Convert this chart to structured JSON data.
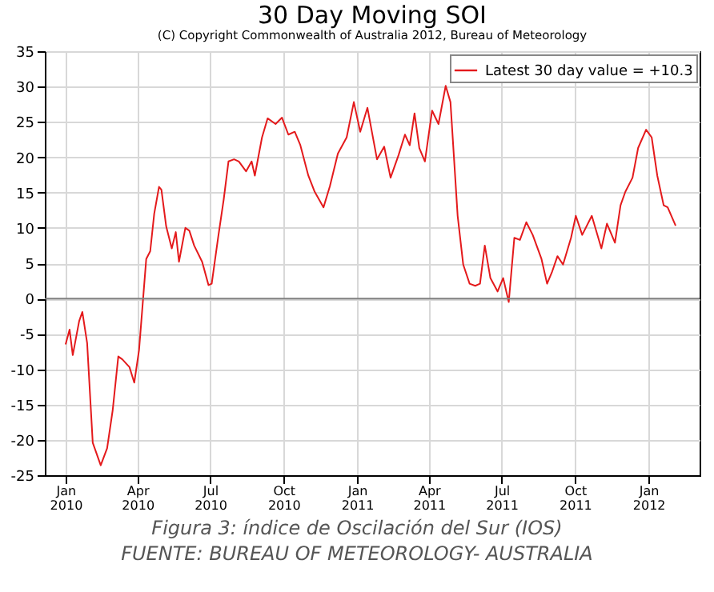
{
  "chart_data": {
    "type": "line",
    "title": "30 Day Moving SOI",
    "subtitle": "(C) Copyright Commonwealth of Australia 2012, Bureau of Meteorology",
    "annotations": [
      "Figura 3: índice de Oscilación del Sur (IOS)",
      "FUENTE: BUREAU OF METEOROLOGY- AUSTRALIA"
    ],
    "xlim": [
      "2009-12-06",
      "2012-03-05"
    ],
    "xticks": [
      {
        "value": "2010-01",
        "label": "Jan 2010"
      },
      {
        "value": "2010-04",
        "label": "Apr 2010"
      },
      {
        "value": "2010-07",
        "label": "Jul 2010"
      },
      {
        "value": "2010-10",
        "label": "Oct 2010"
      },
      {
        "value": "2011-01",
        "label": "Jan 2011"
      },
      {
        "value": "2011-04",
        "label": "Apr 2011"
      },
      {
        "value": "2011-07",
        "label": "Jul 2011"
      },
      {
        "value": "2011-10",
        "label": "Oct 2011"
      },
      {
        "value": "2012-01",
        "label": "Jan 2012"
      }
    ],
    "ylim": [
      -25,
      35
    ],
    "yticks": [
      -25,
      -20,
      -15,
      -10,
      -5,
      0,
      5,
      10,
      15,
      20,
      25,
      30,
      35
    ],
    "grid": true,
    "legend": "top right",
    "ref_lines": [
      {
        "axis": "y",
        "value": 0,
        "color": "#808080"
      }
    ],
    "x": [
      "2010-01-01",
      "2010-01-06",
      "2010-01-10",
      "2010-01-18",
      "2010-01-22",
      "2010-01-28",
      "2010-02-04",
      "2010-02-14",
      "2010-02-22",
      "2010-03-01",
      "2010-03-08",
      "2010-03-13",
      "2010-03-22",
      "2010-03-28",
      "2010-04-03",
      "2010-04-12",
      "2010-04-17",
      "2010-04-22",
      "2010-04-28",
      "2010-05-01",
      "2010-05-07",
      "2010-05-14",
      "2010-05-19",
      "2010-05-23",
      "2010-05-31",
      "2010-06-05",
      "2010-06-11",
      "2010-06-21",
      "2010-06-29",
      "2010-07-03",
      "2010-07-11",
      "2010-07-18",
      "2010-07-24",
      "2010-07-31",
      "2010-08-06",
      "2010-08-15",
      "2010-08-22",
      "2010-08-26",
      "2010-09-04",
      "2010-09-11",
      "2010-09-21",
      "2010-09-29",
      "2010-10-07",
      "2010-10-15",
      "2010-10-22",
      "2010-11-01",
      "2010-11-09",
      "2010-11-20",
      "2010-11-28",
      "2010-12-08",
      "2010-12-19",
      "2010-12-28",
      "2011-01-05",
      "2011-01-14",
      "2011-01-26",
      "2011-02-04",
      "2011-02-12",
      "2011-02-22",
      "2011-03-02",
      "2011-03-08",
      "2011-03-14",
      "2011-03-20",
      "2011-03-27",
      "2011-04-05",
      "2011-04-13",
      "2011-04-22",
      "2011-04-28",
      "2011-05-07",
      "2011-05-14",
      "2011-05-22",
      "2011-05-29",
      "2011-06-04",
      "2011-06-10",
      "2011-06-17",
      "2011-06-26",
      "2011-07-03",
      "2011-07-10",
      "2011-07-17",
      "2011-07-24",
      "2011-08-01",
      "2011-08-09",
      "2011-08-20",
      "2011-08-27",
      "2011-09-02",
      "2011-09-09",
      "2011-09-16",
      "2011-09-26",
      "2011-10-02",
      "2011-10-10",
      "2011-10-22",
      "2011-11-03",
      "2011-11-10",
      "2011-11-20",
      "2011-11-27",
      "2011-12-03",
      "2011-12-12",
      "2011-12-19",
      "2011-12-29",
      "2012-01-05",
      "2012-01-12",
      "2012-01-20",
      "2012-01-25",
      "2012-02-04"
    ],
    "series": [
      {
        "name": "Latest 30 day value = +10.3",
        "color": "#e41a1c",
        "values": [
          -6.5,
          -4.4,
          -8,
          -3.2,
          -1.9,
          -6.3,
          -20.4,
          -23.6,
          -21.2,
          -15.8,
          -8.2,
          -8.6,
          -9.7,
          -11.9,
          -7.3,
          5.6,
          6.7,
          12,
          15.8,
          15.4,
          10.2,
          7.1,
          9.4,
          5.2,
          10,
          9.6,
          7.5,
          5.2,
          1.9,
          2.1,
          8.6,
          14,
          19.4,
          19.7,
          19.4,
          18,
          19.4,
          17.4,
          22.8,
          25.5,
          24.7,
          25.6,
          23.2,
          23.6,
          21.7,
          17.4,
          15.1,
          12.9,
          15.9,
          20.5,
          22.8,
          27.8,
          23.6,
          27,
          19.7,
          21.5,
          17.1,
          20.3,
          23.2,
          21.7,
          26.2,
          21.3,
          19.4,
          26.6,
          24.7,
          30.1,
          27.8,
          11.7,
          4.8,
          2.1,
          1.8,
          2.1,
          7.5,
          2.9,
          1,
          2.9,
          -0.5,
          8.6,
          8.3,
          10.8,
          9,
          5.6,
          2.1,
          3.7,
          6,
          4.8,
          8.6,
          11.7,
          9,
          11.7,
          7.1,
          10.6,
          7.9,
          13.2,
          15.1,
          17.1,
          21.3,
          23.9,
          22.8,
          17.4,
          13.2,
          12.9,
          10.3
        ]
      }
    ]
  }
}
